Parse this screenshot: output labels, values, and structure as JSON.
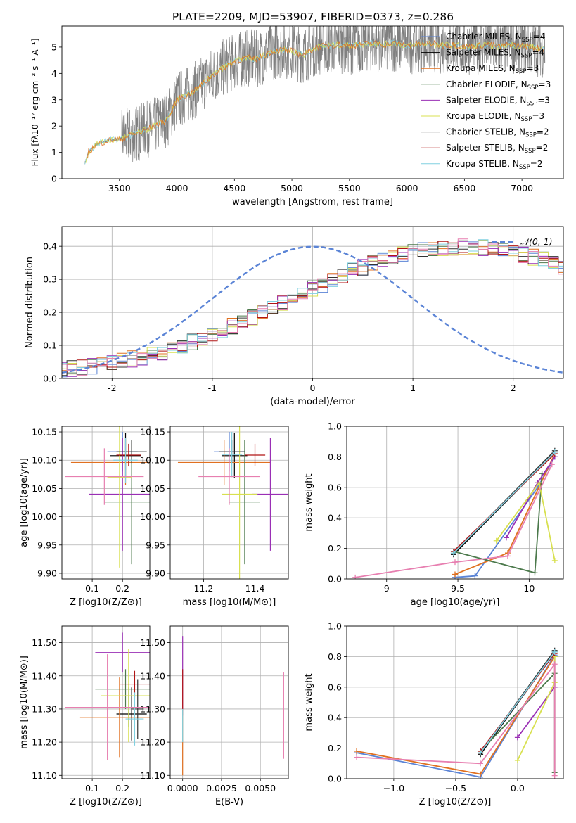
{
  "figure": {
    "title": "PLATE=2209, MJD=53907, FIBERID=0373, z=0.286"
  },
  "palette": {
    "Chabrier MILES": "#5b84d6",
    "Salpeter MILES": "#000000",
    "Kroupa MILES": "#e07020",
    "Chabrier ELODIE": "#4d7a4d",
    "Salpeter ELODIE": "#9a2fb5",
    "Kroupa ELODIE": "#d8e050",
    "Chabrier STELIB": "#333333",
    "Salpeter STELIB": "#b01515",
    "Kroupa STELIB": "#80d0e0",
    "pink": "#e77fb0",
    "data": "#808080",
    "normal": "#5b84d6"
  },
  "chart_data": [
    {
      "id": "spectrum",
      "type": "line",
      "title": "PLATE=2209, MJD=53907, FIBERID=0373, z=0.286",
      "xlabel": "wavelength [Angstrom, rest frame]",
      "ylabel": "Flux [fλ10⁻¹⁷ erg cm⁻² s⁻¹ A⁻¹]",
      "xlim": [
        3000,
        7360
      ],
      "ylim": [
        0,
        5.8
      ],
      "xticks": [
        3500,
        4000,
        4500,
        5000,
        5500,
        6000,
        6500,
        7000
      ],
      "yticks": [
        0,
        1,
        2,
        3,
        4,
        5
      ],
      "grid": false,
      "legend_position": "right",
      "continuum": {
        "x": [
          3200,
          3230,
          3300,
          3400,
          3500,
          3600,
          3700,
          3800,
          3900,
          3950,
          4000,
          4100,
          4200,
          4300,
          4400,
          4500,
          4600,
          4700,
          4800,
          4900,
          5000,
          5100,
          5200,
          5300,
          5400,
          5500,
          5600,
          5700,
          5800,
          5900,
          6000,
          6100,
          6200,
          6300,
          6400,
          6500,
          6600,
          6700,
          6800,
          6900,
          7000,
          7100,
          7200
        ],
        "y": [
          0.6,
          1.0,
          1.3,
          1.45,
          1.5,
          1.65,
          1.8,
          2.0,
          2.2,
          2.5,
          3.0,
          3.2,
          3.5,
          3.9,
          4.2,
          4.45,
          4.6,
          4.55,
          4.8,
          4.9,
          4.85,
          4.7,
          5.0,
          5.05,
          5.1,
          5.05,
          5.1,
          5.15,
          5.1,
          5.15,
          5.05,
          5.1,
          5.15,
          5.05,
          5.1,
          5.0,
          5.05,
          5.1,
          5.0,
          5.1,
          5.05,
          5.0,
          4.9
        ]
      },
      "series": [
        {
          "name": "Chabrier MILES, N_SSP=4",
          "label": "Chabrier MILES, N",
          "sub": "SSP",
          "count": "=4"
        },
        {
          "name": "Salpeter MILES, N_SSP=4",
          "label": "Salpeter MILES, N",
          "sub": "SSP",
          "count": "=4"
        },
        {
          "name": "Kroupa MILES, N_SSP=3",
          "label": "Kroupa MILES, N",
          "sub": "SSP",
          "count": "=3"
        },
        {
          "name": "Chabrier ELODIE, N_SSP=3",
          "label": "Chabrier ELODIE, N",
          "sub": "SSP",
          "count": "=3"
        },
        {
          "name": "Salpeter ELODIE, N_SSP=3",
          "label": "Salpeter ELODIE, N",
          "sub": "SSP",
          "count": "=3"
        },
        {
          "name": "Kroupa ELODIE, N_SSP=3",
          "label": "Kroupa ELODIE, N",
          "sub": "SSP",
          "count": "=3"
        },
        {
          "name": "Chabrier STELIB, N_SSP=2",
          "label": "Chabrier STELIB, N",
          "sub": "SSP",
          "count": "=2"
        },
        {
          "name": "Salpeter STELIB, N_SSP=2",
          "label": "Salpeter STELIB, N",
          "sub": "SSP",
          "count": "=2"
        },
        {
          "name": "Kroupa STELIB, N_SSP=2",
          "label": "Kroupa STELIB, N",
          "sub": "SSP",
          "count": "=2"
        }
      ]
    },
    {
      "id": "residuals",
      "type": "line",
      "xlabel": "(data-model)/error",
      "ylabel": "Normed distribution",
      "xlim": [
        -2.5,
        2.5
      ],
      "ylim": [
        0,
        0.46
      ],
      "xticks": [
        -2,
        -1,
        0,
        1,
        2
      ],
      "yticks": [
        0.0,
        0.1,
        0.2,
        0.3,
        0.4
      ],
      "grid": true,
      "legend_position": "top-right",
      "legend_label": "𝒩(0, 1)",
      "bin_width": 0.1,
      "histogram_base": [
        0.03,
        0.03,
        0.033,
        0.036,
        0.041,
        0.047,
        0.052,
        0.059,
        0.065,
        0.073,
        0.081,
        0.09,
        0.1,
        0.111,
        0.122,
        0.134,
        0.146,
        0.159,
        0.172,
        0.186,
        0.2,
        0.214,
        0.228,
        0.243,
        0.257,
        0.271,
        0.285,
        0.299,
        0.312,
        0.325,
        0.337,
        0.348,
        0.358,
        0.367,
        0.375,
        0.382,
        0.388,
        0.393,
        0.396,
        0.398,
        0.399,
        0.398,
        0.396,
        0.393,
        0.388,
        0.382,
        0.375,
        0.367,
        0.358,
        0.348,
        0.337,
        0.325,
        0.312,
        0.299,
        0.285,
        0.271,
        0.257,
        0.243,
        0.228,
        0.214,
        0.2,
        0.186,
        0.172,
        0.159,
        0.146,
        0.134,
        0.122,
        0.111,
        0.1,
        0.09,
        0.081,
        0.073,
        0.065,
        0.059,
        0.052,
        0.047,
        0.041,
        0.036,
        0.033,
        0.03,
        0.03
      ]
    },
    {
      "id": "z_vs_age",
      "type": "scatter",
      "xlabel": "Z [log10(Z/Z⊙)]",
      "ylabel": "age  [log10(age/yr)]",
      "xlim": [
        0.0,
        0.29
      ],
      "ylim": [
        9.89,
        10.16
      ],
      "xticks": [
        0.1,
        0.2
      ],
      "yticks": [
        9.9,
        9.95,
        10.0,
        10.05,
        10.1,
        10.15
      ],
      "grid": true,
      "points": [
        {
          "model": "Chabrier MILES",
          "x": 0.2,
          "y": 10.115,
          "xerr": 0.05,
          "yerr": 0.035
        },
        {
          "model": "Salpeter MILES",
          "x": 0.21,
          "y": 10.108,
          "xerr": 0.05,
          "yerr": 0.04
        },
        {
          "model": "Kroupa MILES",
          "x": 0.21,
          "y": 10.096,
          "xerr": 0.18,
          "yerr": 0.04
        },
        {
          "model": "Chabrier ELODIE",
          "x": 0.23,
          "y": 10.026,
          "xerr": 0.09,
          "yerr": 0.11
        },
        {
          "model": "Salpeter ELODIE",
          "x": 0.2,
          "y": 10.04,
          "xerr": 0.11,
          "yerr": 0.1
        },
        {
          "model": "Kroupa ELODIE",
          "x": 0.19,
          "y": 10.07,
          "xerr": 0.04,
          "yerr": 0.16
        },
        {
          "model": "Chabrier STELIB",
          "x": 0.23,
          "y": 10.115,
          "xerr": 0.05,
          "yerr": 0.02
        },
        {
          "model": "Salpeter STELIB",
          "x": 0.22,
          "y": 10.109,
          "xerr": 0.04,
          "yerr": 0.02
        },
        {
          "model": "Kroupa STELIB",
          "x": 0.21,
          "y": 10.1,
          "xerr": 0.04,
          "yerr": 0.04
        },
        {
          "model": "pink",
          "x": 0.14,
          "y": 10.071,
          "xerr": 0.13,
          "yerr": 0.05
        }
      ]
    },
    {
      "id": "mass_vs_age",
      "type": "scatter",
      "xlabel": "mass [log10(M/M⊙)]",
      "ylabel": "",
      "xlim": [
        11.07,
        11.53
      ],
      "ylim": [
        9.89,
        10.16
      ],
      "xticks": [
        11.2,
        11.4
      ],
      "yticks": [
        9.9,
        9.95,
        10.0,
        10.05,
        10.1,
        10.15
      ],
      "grid": true,
      "points": [
        {
          "model": "Chabrier MILES",
          "x": 11.3,
          "y": 10.115,
          "xerr": 0.06,
          "yerr": 0.035
        },
        {
          "model": "Salpeter MILES",
          "x": 11.32,
          "y": 10.108,
          "xerr": 0.05,
          "yerr": 0.04
        },
        {
          "model": "Kroupa MILES",
          "x": 11.28,
          "y": 10.096,
          "xerr": 0.18,
          "yerr": 0.04
        },
        {
          "model": "Chabrier ELODIE",
          "x": 11.36,
          "y": 10.026,
          "xerr": 0.06,
          "yerr": 0.11
        },
        {
          "model": "Salpeter ELODIE",
          "x": 11.46,
          "y": 10.04,
          "xerr": 0.07,
          "yerr": 0.1
        },
        {
          "model": "Kroupa ELODIE",
          "x": 11.34,
          "y": 10.04,
          "xerr": 0.07,
          "yerr": 0.16
        },
        {
          "model": "Chabrier STELIB",
          "x": 11.31,
          "y": 10.115,
          "xerr": 0.05,
          "yerr": 0.02
        },
        {
          "model": "Salpeter STELIB",
          "x": 11.4,
          "y": 10.109,
          "xerr": 0.04,
          "yerr": 0.02
        },
        {
          "model": "Kroupa STELIB",
          "x": 11.31,
          "y": 10.11,
          "xerr": 0.04,
          "yerr": 0.04
        },
        {
          "model": "pink",
          "x": 11.3,
          "y": 10.071,
          "xerr": 0.12,
          "yerr": 0.05
        }
      ]
    },
    {
      "id": "age_vs_massweight",
      "type": "line",
      "xlabel": "age  [log10(age/yr)]",
      "ylabel": "mass weight",
      "xlim": [
        8.72,
        10.24
      ],
      "ylim": [
        0,
        1.0
      ],
      "xticks": [
        9.0,
        9.5,
        10.0
      ],
      "yticks": [
        0.0,
        0.2,
        0.4,
        0.6,
        0.8,
        1.0
      ],
      "grid": true,
      "series": [
        {
          "model": "Chabrier MILES",
          "x": [
            9.48,
            9.62,
            10.06,
            10.18
          ],
          "y": [
            0.01,
            0.02,
            0.6,
            0.8
          ]
        },
        {
          "model": "Salpeter MILES",
          "x": [
            9.47,
            10.18
          ],
          "y": [
            0.16,
            0.83
          ]
        },
        {
          "model": "Kroupa MILES",
          "x": [
            9.48,
            9.85,
            10.17
          ],
          "y": [
            0.03,
            0.17,
            0.8
          ]
        },
        {
          "model": "Chabrier ELODIE",
          "x": [
            9.47,
            10.04,
            10.09
          ],
          "y": [
            0.18,
            0.04,
            0.69
          ]
        },
        {
          "model": "Salpeter ELODIE",
          "x": [
            9.84,
            10.06,
            10.18
          ],
          "y": [
            0.27,
            0.63,
            0.8
          ]
        },
        {
          "model": "Kroupa ELODIE",
          "x": [
            9.77,
            10.07,
            10.18
          ],
          "y": [
            0.25,
            0.63,
            0.12
          ]
        },
        {
          "model": "Chabrier STELIB",
          "x": [
            9.47,
            10.18
          ],
          "y": [
            0.17,
            0.84
          ]
        },
        {
          "model": "Salpeter STELIB",
          "x": [
            9.47,
            10.18
          ],
          "y": [
            0.18,
            0.82
          ]
        },
        {
          "model": "Kroupa STELIB",
          "x": [
            9.47,
            10.18
          ],
          "y": [
            0.17,
            0.83
          ]
        },
        {
          "model": "pink",
          "x": [
            8.78,
            9.48,
            9.85,
            10.16
          ],
          "y": [
            0.01,
            0.11,
            0.15,
            0.75
          ]
        }
      ]
    },
    {
      "id": "z_vs_mass",
      "type": "scatter",
      "xlabel": "Z [log10(Z/Z⊙)]",
      "ylabel": "mass [log10(M/M⊙)]",
      "xlim": [
        0.0,
        0.29
      ],
      "ylim": [
        11.09,
        11.55
      ],
      "xticks": [
        0.1,
        0.2
      ],
      "yticks": [
        11.1,
        11.2,
        11.3,
        11.4,
        11.5
      ],
      "grid": true,
      "points": [
        {
          "model": "Chabrier MILES",
          "x": 0.22,
          "y": 11.305,
          "xerr": 0.06,
          "yerr": 0.06
        },
        {
          "model": "Salpeter MILES",
          "x": 0.23,
          "y": 11.285,
          "xerr": 0.05,
          "yerr": 0.08
        },
        {
          "model": "Kroupa MILES",
          "x": 0.19,
          "y": 11.275,
          "xerr": 0.13,
          "yerr": 0.12
        },
        {
          "model": "Chabrier ELODIE",
          "x": 0.21,
          "y": 11.36,
          "xerr": 0.1,
          "yerr": 0.06
        },
        {
          "model": "Salpeter ELODIE",
          "x": 0.2,
          "y": 11.47,
          "xerr": 0.09,
          "yerr": 0.06
        },
        {
          "model": "Kroupa ELODIE",
          "x": 0.22,
          "y": 11.34,
          "xerr": 0.09,
          "yerr": 0.14
        },
        {
          "model": "Chabrier STELIB",
          "x": 0.25,
          "y": 11.3,
          "xerr": 0.02,
          "yerr": 0.09
        },
        {
          "model": "Salpeter STELIB",
          "x": 0.24,
          "y": 11.375,
          "xerr": 0.05,
          "yerr": 0.04
        },
        {
          "model": "Kroupa STELIB",
          "x": 0.24,
          "y": 11.27,
          "xerr": 0.03,
          "yerr": 0.08
        },
        {
          "model": "pink",
          "x": 0.15,
          "y": 11.305,
          "xerr": 0.14,
          "yerr": 0.16
        }
      ]
    },
    {
      "id": "ebv_vs_mass",
      "type": "scatter",
      "xlabel": "E(B-V)",
      "ylabel": "",
      "xlim": [
        -0.0008,
        0.0068
      ],
      "ylim": [
        11.09,
        11.55
      ],
      "xticks": [
        0.0,
        0.0025,
        0.005
      ],
      "xticklabels": [
        "0.0000",
        "0.0025",
        "0.0050"
      ],
      "yticks": [
        11.1,
        11.2,
        11.3,
        11.4,
        11.5
      ],
      "grid": true,
      "points": [
        {
          "model": "Salpeter ELODIE",
          "x": 0.0,
          "y": 11.4,
          "xerr": 0,
          "yerr": 0.12
        },
        {
          "model": "Salpeter STELIB",
          "x": 0.0,
          "y": 11.36,
          "xerr": 0,
          "yerr": 0.06
        },
        {
          "model": "Kroupa MILES",
          "x": 0.0,
          "y": 11.2,
          "xerr": 0,
          "yerr": 0.1
        },
        {
          "model": "Kroupa STELIB",
          "x": 0.0,
          "y": 11.25,
          "xerr": 0,
          "yerr": 0.05
        },
        {
          "model": "pink",
          "x": 0.0065,
          "y": 11.28,
          "xerr": 0,
          "yerr": 0.13
        }
      ]
    },
    {
      "id": "z_vs_massweight",
      "type": "line",
      "xlabel": "Z [log10(Z/Z⊙)]",
      "ylabel": "mass weight",
      "xlim": [
        -1.38,
        0.37
      ],
      "ylim": [
        0,
        1.0
      ],
      "xticks": [
        -1.0,
        -0.5,
        0.0
      ],
      "xticklabels": [
        "−1.0",
        "−0.5",
        "0.0"
      ],
      "yticks": [
        0.0,
        0.2,
        0.4,
        0.6,
        0.8,
        1.0
      ],
      "grid": true,
      "series": [
        {
          "model": "Chabrier MILES",
          "x": [
            -1.3,
            -0.3,
            0.3
          ],
          "y": [
            0.17,
            0.01,
            0.81
          ]
        },
        {
          "model": "Salpeter MILES",
          "x": [
            -0.3,
            0.3
          ],
          "y": [
            0.16,
            0.83
          ]
        },
        {
          "model": "Kroupa MILES",
          "x": [
            -1.3,
            -0.3,
            0.3
          ],
          "y": [
            0.18,
            0.03,
            0.8
          ]
        },
        {
          "model": "Chabrier ELODIE",
          "x": [
            -0.3,
            0.3,
            0.3
          ],
          "y": [
            0.18,
            0.69,
            0.04
          ]
        },
        {
          "model": "Salpeter ELODIE",
          "x": [
            0.0,
            0.3,
            0.3
          ],
          "y": [
            0.27,
            0.6,
            0.8
          ]
        },
        {
          "model": "Kroupa ELODIE",
          "x": [
            0.0,
            0.3,
            0.3
          ],
          "y": [
            0.12,
            0.63,
            0.8
          ]
        },
        {
          "model": "Chabrier STELIB",
          "x": [
            -0.3,
            0.3
          ],
          "y": [
            0.17,
            0.84
          ]
        },
        {
          "model": "Salpeter STELIB",
          "x": [
            -0.3,
            0.3
          ],
          "y": [
            0.18,
            0.82
          ]
        },
        {
          "model": "Kroupa STELIB",
          "x": [
            -0.3,
            0.3
          ],
          "y": [
            0.17,
            0.83
          ]
        },
        {
          "model": "pink",
          "x": [
            -1.3,
            -0.3,
            0.3,
            0.3
          ],
          "y": [
            0.14,
            0.1,
            0.75,
            0.02
          ]
        }
      ]
    }
  ]
}
